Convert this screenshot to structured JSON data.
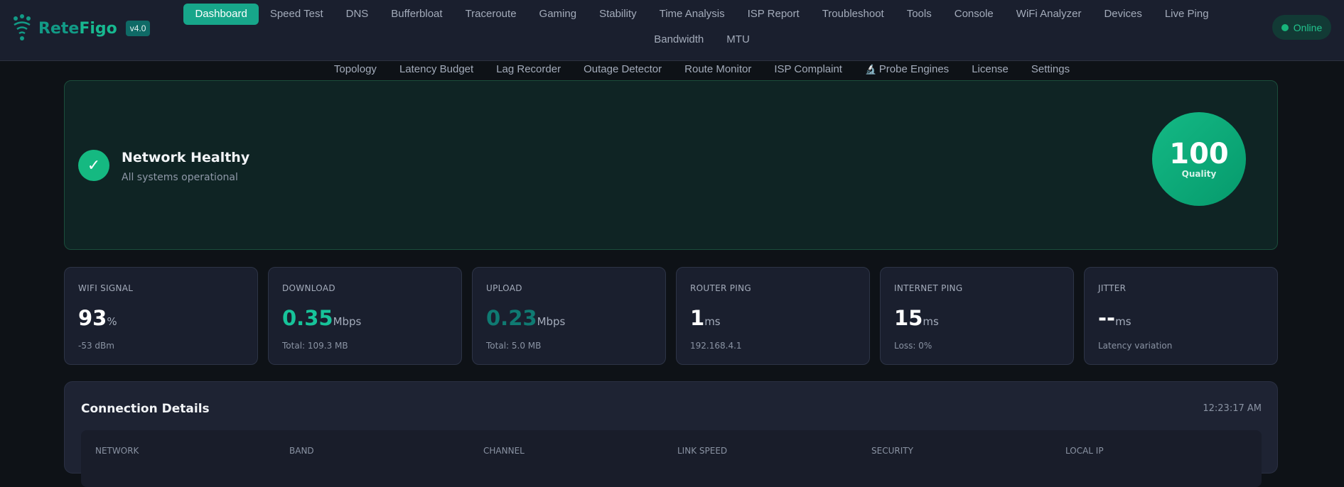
{
  "app": {
    "name_a": "Rete",
    "name_b": "Figo",
    "version": "v4.0",
    "logo_icon": "paw-wifi-icon"
  },
  "nav": {
    "items": [
      "Dashboard",
      "Speed Test",
      "DNS",
      "Bufferbloat",
      "Traceroute",
      "Gaming",
      "Stability",
      "Time Analysis",
      "ISP Report",
      "Troubleshoot",
      "Tools",
      "Console",
      "WiFi Analyzer",
      "Devices",
      "Live Ping",
      "Bandwidth",
      "MTU",
      "Topology",
      "Latency Budget",
      "Lag Recorder",
      "Outage Detector",
      "Route Monitor",
      "ISP Complaint",
      "Probe Engines",
      "License",
      "Settings"
    ],
    "active": "Dashboard",
    "probe_icon": "microscope-icon"
  },
  "status": {
    "label": "Online",
    "color": "#17b37a"
  },
  "hero": {
    "title": "Network Healthy",
    "subtitle": "All systems operational",
    "score": "100",
    "score_label": "Quality",
    "accent": "#15b981"
  },
  "stats": [
    {
      "label": "WIFI SIGNAL",
      "value": "93",
      "unit": "%",
      "sub": "-53 dBm",
      "color": "#ffffff"
    },
    {
      "label": "DOWNLOAD",
      "value": "0.35",
      "unit": "Mbps",
      "sub": "Total: 109.3 MB",
      "color": "#17c39a"
    },
    {
      "label": "UPLOAD",
      "value": "0.23",
      "unit": "Mbps",
      "sub": "Total: 5.0 MB",
      "color": "#0f7a72"
    },
    {
      "label": "ROUTER PING",
      "value": "1",
      "unit": "ms",
      "sub": "192.168.4.1",
      "color": "#ffffff"
    },
    {
      "label": "INTERNET PING",
      "value": "15",
      "unit": "ms",
      "sub": "Loss: 0%",
      "color": "#ffffff"
    },
    {
      "label": "JITTER",
      "value": "--",
      "unit": "ms",
      "sub": "Latency variation",
      "color": "#ffffff"
    }
  ],
  "connection": {
    "title": "Connection Details",
    "time": "12:23:17 AM",
    "columns": [
      "NETWORK",
      "BAND",
      "CHANNEL",
      "LINK SPEED",
      "SECURITY",
      "LOCAL IP"
    ]
  }
}
